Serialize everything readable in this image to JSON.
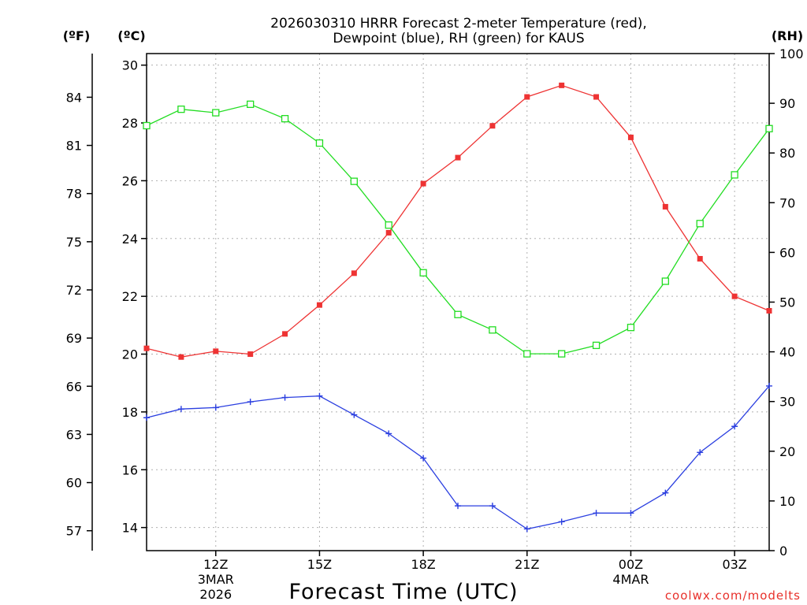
{
  "chart_data": {
    "type": "line",
    "title_lines": [
      "2026030310 HRRR Forecast 2-meter Temperature (red),",
      "Dewpoint (blue), RH (green) for KAUS"
    ],
    "xlabel": "Forecast Time (UTC)",
    "credit": "coolwx.com/modelts",
    "units": {
      "f": "(ºF)",
      "c": "(ºC)",
      "rh": "(RH)"
    },
    "x_hours": [
      10,
      11,
      12,
      13,
      14,
      15,
      16,
      17,
      18,
      19,
      20,
      21,
      22,
      23,
      24,
      25,
      26,
      27,
      28
    ],
    "xlim": [
      10,
      28
    ],
    "x_ticks": [
      {
        "hour": 12,
        "label": "12Z",
        "sub": [
          "3MAR",
          "2026"
        ]
      },
      {
        "hour": 15,
        "label": "15Z",
        "sub": []
      },
      {
        "hour": 18,
        "label": "18Z",
        "sub": []
      },
      {
        "hour": 21,
        "label": "21Z",
        "sub": []
      },
      {
        "hour": 24,
        "label": "00Z",
        "sub": [
          "4MAR"
        ]
      },
      {
        "hour": 27,
        "label": "03Z",
        "sub": []
      }
    ],
    "ylim_c": [
      13.2,
      30.4
    ],
    "c_ticks": [
      30,
      28,
      26,
      24,
      22,
      20,
      18,
      16,
      14
    ],
    "f_ticks": [
      84,
      81,
      78,
      75,
      72,
      69,
      66,
      63,
      60,
      57
    ],
    "ylim_rh": [
      0,
      100
    ],
    "rh_ticks": [
      100,
      90,
      80,
      70,
      60,
      50,
      40,
      30,
      20,
      10,
      0
    ],
    "series": [
      {
        "name": "2-meter Temperature",
        "axis": "c",
        "color": "#ee3333",
        "marker": "filled-square",
        "values": [
          20.2,
          19.9,
          20.1,
          20.0,
          20.7,
          21.7,
          22.8,
          24.2,
          25.9,
          26.8,
          27.9,
          28.9,
          29.3,
          28.9,
          27.5,
          25.1,
          23.3,
          22.0,
          21.5
        ]
      },
      {
        "name": "Dewpoint",
        "axis": "c",
        "color": "#2b3fe0",
        "marker": "plus",
        "values": [
          17.8,
          18.1,
          18.15,
          18.35,
          18.5,
          18.55,
          17.9,
          17.25,
          16.4,
          14.75,
          14.75,
          13.95,
          14.2,
          14.5,
          14.5,
          15.2,
          16.6,
          17.5,
          18.9
        ]
      },
      {
        "name": "RH",
        "axis": "rh",
        "color": "#22dd22",
        "marker": "open-square",
        "values": [
          85.5,
          88.8,
          88.1,
          89.8,
          86.9,
          82.0,
          74.3,
          65.5,
          55.9,
          47.5,
          44.4,
          39.6,
          39.6,
          41.3,
          44.9,
          54.2,
          65.8,
          75.6,
          84.9
        ]
      }
    ]
  }
}
